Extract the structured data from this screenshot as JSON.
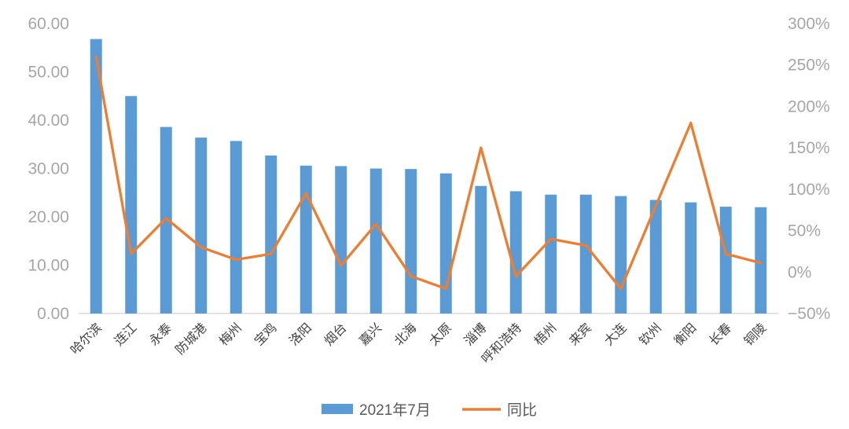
{
  "chart_data": {
    "type": "bar",
    "subtype": "bar-line-combo",
    "title": "",
    "categories": [
      "哈尔滨",
      "连江",
      "永泰",
      "防城港",
      "梅州",
      "宝鸡",
      "洛阳",
      "烟台",
      "嘉兴",
      "北海",
      "太原",
      "淄博",
      "呼和浩特",
      "梧州",
      "来宾",
      "大连",
      "钦州",
      "衡阳",
      "长春",
      "铜陵"
    ],
    "series": [
      {
        "name": "2021年7月",
        "type": "bar",
        "axis": "left",
        "color": "#5B9BD5",
        "values": [
          56.8,
          45.0,
          38.6,
          36.4,
          35.7,
          32.7,
          30.6,
          30.5,
          30.0,
          29.9,
          29.0,
          26.4,
          25.3,
          24.6,
          24.6,
          24.3,
          23.5,
          23.0,
          22.1,
          22.0
        ]
      },
      {
        "name": "同比",
        "type": "line",
        "axis": "right",
        "unit": "%",
        "color": "#ED7D31",
        "values": [
          260,
          22,
          65,
          30,
          15,
          22,
          95,
          8,
          58,
          -5,
          -20,
          150,
          -5,
          40,
          32,
          -20,
          80,
          180,
          22,
          11
        ]
      }
    ],
    "y_axis_left": {
      "min": 0,
      "max": 60,
      "ticks": [
        "60.00",
        "50.00",
        "40.00",
        "30.00",
        "20.00",
        "10.00",
        "0.00"
      ]
    },
    "y_axis_right": {
      "min": -50,
      "max": 300,
      "ticks": [
        "300%",
        "250%",
        "200%",
        "150%",
        "100%",
        "50%",
        "0%",
        "-50%"
      ]
    },
    "grid": false,
    "legend_position": "bottom"
  },
  "colors": {
    "axis_tick_text": "#A6A6A6",
    "x_label_text": "#404040",
    "legend_text": "#595959",
    "baseline": "#D9D9D9",
    "background": "#FFFFFF"
  }
}
